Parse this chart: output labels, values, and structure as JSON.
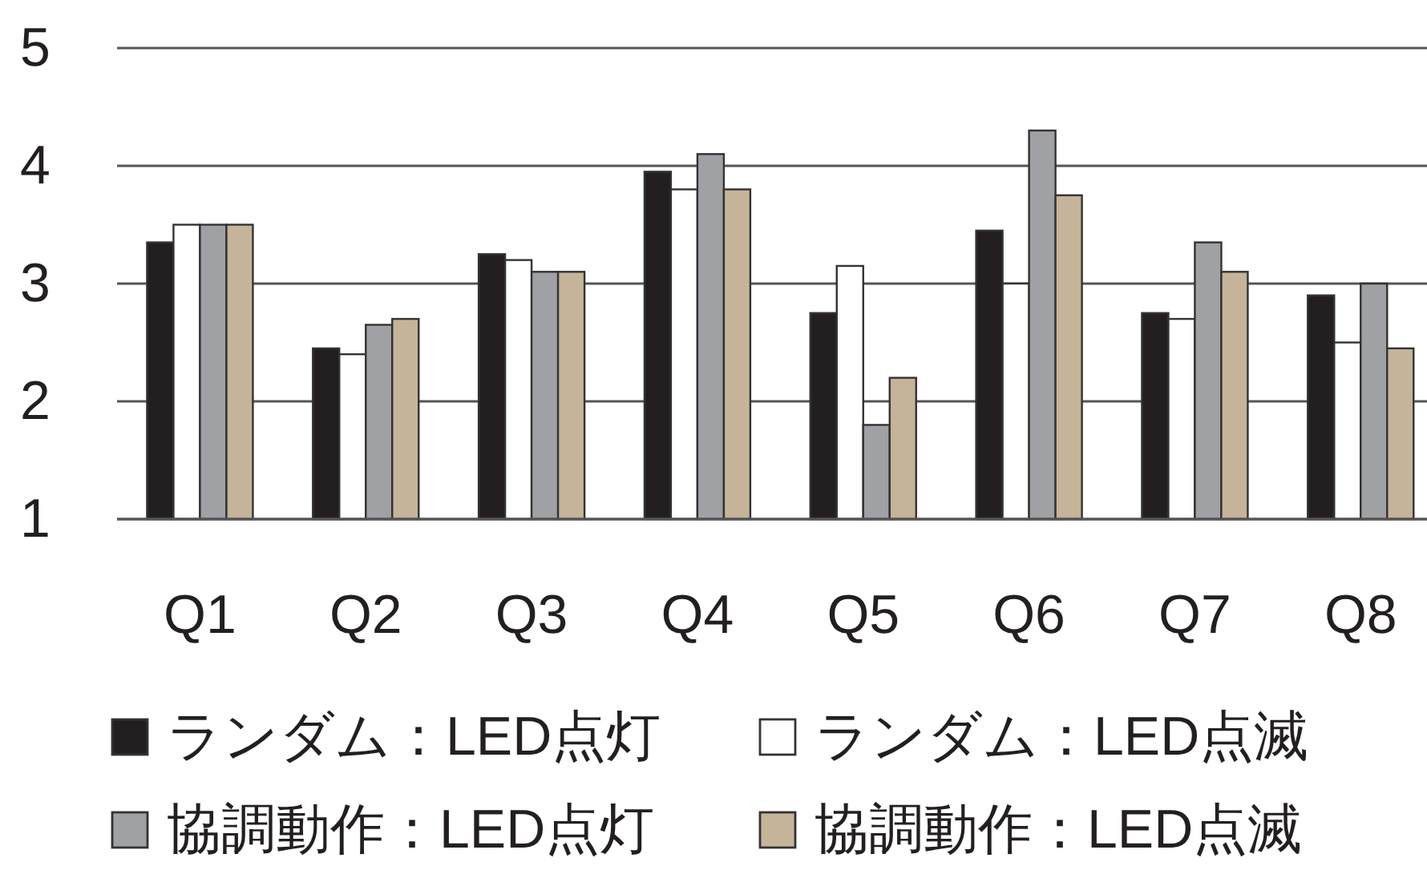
{
  "chart_data": {
    "type": "bar",
    "categories": [
      "Q1",
      "Q2",
      "Q3",
      "Q4",
      "Q5",
      "Q6",
      "Q7",
      "Q8"
    ],
    "series": [
      {
        "name": "ランダム：LED点灯",
        "color": "#231f20",
        "values": [
          3.35,
          2.45,
          3.25,
          3.95,
          2.75,
          3.45,
          2.75,
          2.9
        ]
      },
      {
        "name": "ランダム：LED点滅",
        "color": "#ffffff",
        "values": [
          3.5,
          2.4,
          3.2,
          3.8,
          3.15,
          3.0,
          2.7,
          2.5
        ]
      },
      {
        "name": "協調動作：LED点灯",
        "color": "#a0a1a5",
        "values": [
          3.5,
          2.65,
          3.1,
          4.1,
          1.8,
          4.3,
          3.35,
          3.0
        ]
      },
      {
        "name": "協調動作：LED点滅",
        "color": "#c5b49a",
        "values": [
          3.5,
          2.7,
          3.1,
          3.8,
          2.2,
          3.75,
          3.1,
          2.45
        ]
      }
    ],
    "ylim": [
      1,
      5
    ],
    "yticks": [
      1,
      2,
      3,
      4,
      5
    ],
    "grid": "y",
    "legend": "bottom"
  }
}
